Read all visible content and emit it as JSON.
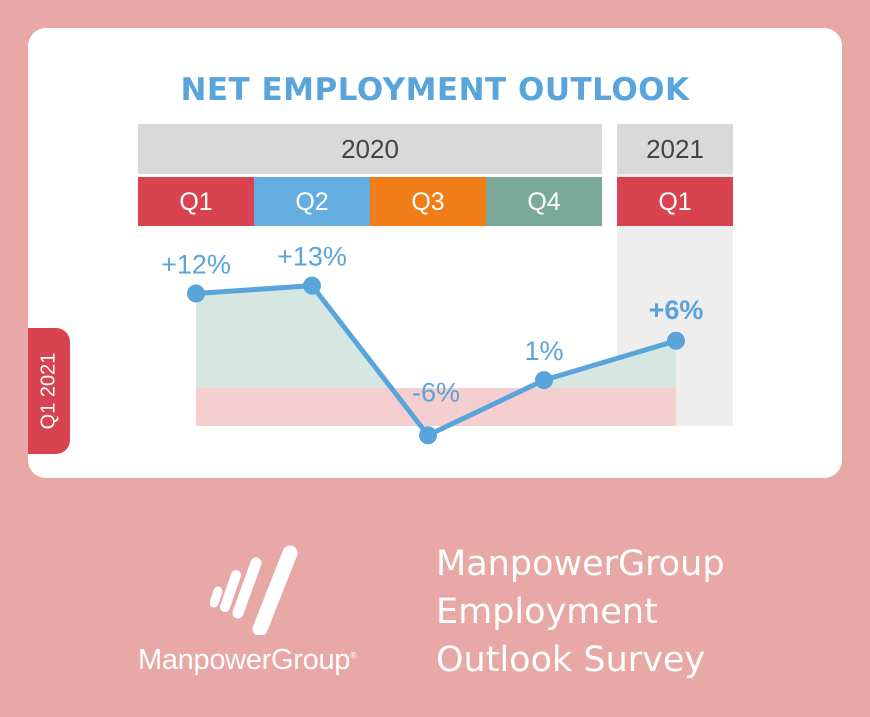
{
  "chart_data": {
    "type": "line",
    "title": "NET EMPLOYMENT OUTLOOK",
    "year_headers": [
      "2020",
      "2021"
    ],
    "categories": [
      "Q1",
      "Q2",
      "Q3",
      "Q4",
      "Q1"
    ],
    "category_colors": [
      "#d9434f",
      "#64aedf",
      "#f07d17",
      "#7aa99a",
      "#d9434f"
    ],
    "values": [
      12,
      13,
      -6,
      1,
      6
    ],
    "data_labels": [
      "+12%",
      "+13%",
      "-6%",
      "1%",
      "+6%"
    ],
    "ylim": [
      -6,
      13
    ],
    "line_color": "#5aa4dc",
    "positive_fill": "#d6e6e1",
    "negative_fill": "#f5cfcf"
  },
  "side_tab": {
    "text": "Q1 2021"
  },
  "brand": {
    "logo_text": "ManpowerGroup",
    "logo_reg": "®",
    "survey_line1": "ManpowerGroup",
    "survey_line2": "Employment",
    "survey_line3": "Outlook Survey"
  },
  "colors": {
    "background": "#e8a8a5",
    "card": "#ffffff",
    "accent": "#5aa4dc",
    "header_gray": "#d9d9d9"
  }
}
